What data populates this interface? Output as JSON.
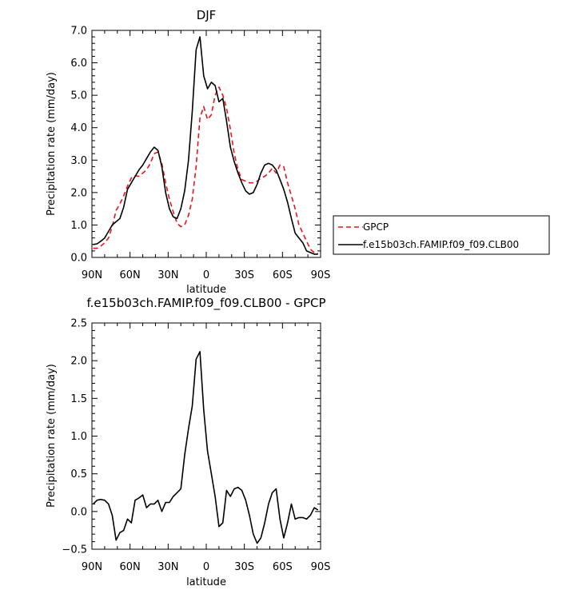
{
  "chart_data": [
    {
      "type": "line",
      "title": "DJF",
      "xlabel": "latitude",
      "ylabel": "Precipitation rate (mm/day)",
      "xlim": [
        90,
        -90
      ],
      "ylim": [
        0,
        7
      ],
      "x_ticks": [
        {
          "v": 90,
          "label": "90N"
        },
        {
          "v": 60,
          "label": "60N"
        },
        {
          "v": 30,
          "label": "30N"
        },
        {
          "v": 0,
          "label": "0"
        },
        {
          "v": -30,
          "label": "30S"
        },
        {
          "v": -60,
          "label": "60S"
        },
        {
          "v": -90,
          "label": "90S"
        }
      ],
      "y_ticks": [
        {
          "v": 0,
          "label": "0.0"
        },
        {
          "v": 1,
          "label": "1.0"
        },
        {
          "v": 2,
          "label": "2.0"
        },
        {
          "v": 3,
          "label": "3.0"
        },
        {
          "v": 4,
          "label": "4.0"
        },
        {
          "v": 5,
          "label": "5.0"
        },
        {
          "v": 6,
          "label": "6.0"
        },
        {
          "v": 7,
          "label": "7.0"
        }
      ],
      "grid": false,
      "legend_placement": "right",
      "series": [
        {
          "name": "GPCP",
          "color": "#e8141c",
          "dash": "dashed",
          "x": [
            89,
            86,
            83,
            80,
            77,
            74,
            71,
            68,
            65,
            62,
            59,
            56,
            53,
            50,
            47,
            44,
            41,
            38,
            35,
            32,
            29,
            26,
            23,
            20,
            17,
            14,
            11,
            8,
            5,
            2,
            -1,
            -4,
            -7,
            -10,
            -13,
            -16,
            -19,
            -22,
            -25,
            -28,
            -31,
            -34,
            -37,
            -40,
            -43,
            -46,
            -49,
            -52,
            -55,
            -58,
            -61,
            -64,
            -67,
            -70,
            -73,
            -76,
            -79,
            -82,
            -85,
            -88
          ],
          "y": [
            0.28,
            0.28,
            0.35,
            0.45,
            0.6,
            0.95,
            1.45,
            1.65,
            1.9,
            2.2,
            2.45,
            2.52,
            2.5,
            2.6,
            2.7,
            2.9,
            3.2,
            3.25,
            2.9,
            2.3,
            1.8,
            1.4,
            1.05,
            0.95,
            1.0,
            1.3,
            1.8,
            2.8,
            4.3,
            4.65,
            4.25,
            4.4,
            5.0,
            5.25,
            5.0,
            4.6,
            3.95,
            3.2,
            2.7,
            2.4,
            2.35,
            2.3,
            2.3,
            2.35,
            2.45,
            2.5,
            2.6,
            2.75,
            2.6,
            2.85,
            2.8,
            2.3,
            1.9,
            1.5,
            1.0,
            0.75,
            0.5,
            0.25,
            0.15,
            0.12
          ]
        },
        {
          "name": "f.e15b03ch.FAMIP.f09_f09.CLB00",
          "color": "#000000",
          "dash": "solid",
          "x": [
            89,
            86,
            83,
            80,
            77,
            74,
            71,
            68,
            65,
            62,
            59,
            56,
            53,
            50,
            47,
            44,
            41,
            38,
            35,
            32,
            29,
            26,
            23,
            20,
            17,
            14,
            11,
            8,
            5,
            2,
            -1,
            -4,
            -7,
            -10,
            -13,
            -16,
            -19,
            -22,
            -25,
            -28,
            -31,
            -34,
            -37,
            -40,
            -43,
            -46,
            -49,
            -52,
            -55,
            -58,
            -61,
            -64,
            -67,
            -70,
            -73,
            -76,
            -79,
            -82,
            -85,
            -88
          ],
          "y": [
            0.4,
            0.42,
            0.5,
            0.6,
            0.8,
            1.0,
            1.1,
            1.2,
            1.55,
            2.1,
            2.3,
            2.5,
            2.7,
            2.85,
            3.05,
            3.25,
            3.4,
            3.3,
            2.8,
            2.0,
            1.5,
            1.25,
            1.2,
            1.5,
            2.05,
            3.0,
            4.5,
            6.4,
            6.8,
            5.6,
            5.2,
            5.4,
            5.3,
            4.8,
            4.9,
            4.2,
            3.4,
            2.95,
            2.6,
            2.3,
            2.05,
            1.95,
            2.0,
            2.25,
            2.6,
            2.85,
            2.9,
            2.85,
            2.7,
            2.4,
            2.1,
            1.7,
            1.2,
            0.75,
            0.6,
            0.45,
            0.2,
            0.15,
            0.1,
            0.1
          ]
        }
      ]
    },
    {
      "type": "line",
      "title": "f.e15b03ch.FAMIP.f09_f09.CLB00 - GPCP",
      "xlabel": "latitude",
      "ylabel": "Precipitation rate (mm/day)",
      "xlim": [
        90,
        -90
      ],
      "ylim": [
        -0.5,
        2.5
      ],
      "x_ticks": [
        {
          "v": 90,
          "label": "90N"
        },
        {
          "v": 60,
          "label": "60N"
        },
        {
          "v": 30,
          "label": "30N"
        },
        {
          "v": 0,
          "label": "0"
        },
        {
          "v": -30,
          "label": "30S"
        },
        {
          "v": -60,
          "label": "60S"
        },
        {
          "v": -90,
          "label": "90S"
        }
      ],
      "y_ticks": [
        {
          "v": -0.5,
          "label": "−0.5"
        },
        {
          "v": 0,
          "label": "0.0"
        },
        {
          "v": 0.5,
          "label": "0.5"
        },
        {
          "v": 1,
          "label": "1.0"
        },
        {
          "v": 1.5,
          "label": "1.5"
        },
        {
          "v": 2,
          "label": "2.0"
        },
        {
          "v": 2.5,
          "label": "2.5"
        }
      ],
      "grid": false,
      "series": [
        {
          "color": "#000000",
          "dash": "solid",
          "x": [
            89,
            86,
            83,
            80,
            77,
            74,
            71,
            68,
            65,
            62,
            59,
            56,
            53,
            50,
            47,
            44,
            41,
            38,
            35,
            32,
            29,
            26,
            23,
            20,
            17,
            14,
            11,
            8,
            5,
            2,
            -1,
            -4,
            -7,
            -10,
            -13,
            -16,
            -19,
            -22,
            -25,
            -28,
            -31,
            -34,
            -37,
            -40,
            -43,
            -46,
            -49,
            -52,
            -55,
            -58,
            -61,
            -64,
            -67,
            -70,
            -73,
            -76,
            -79,
            -82,
            -85,
            -88
          ],
          "y": [
            0.1,
            0.15,
            0.16,
            0.15,
            0.1,
            -0.05,
            -0.38,
            -0.28,
            -0.25,
            -0.1,
            -0.15,
            0.15,
            0.18,
            0.22,
            0.05,
            0.1,
            0.1,
            0.15,
            0.0,
            0.12,
            0.12,
            0.2,
            0.25,
            0.3,
            0.75,
            1.1,
            1.4,
            2.02,
            2.12,
            1.35,
            0.8,
            0.5,
            0.2,
            -0.2,
            -0.15,
            0.28,
            0.2,
            0.3,
            0.32,
            0.28,
            0.15,
            -0.05,
            -0.3,
            -0.42,
            -0.35,
            -0.15,
            0.1,
            0.25,
            0.3,
            -0.1,
            -0.35,
            -0.15,
            0.1,
            -0.1,
            -0.08,
            -0.08,
            -0.1,
            -0.05,
            0.05,
            0.02
          ]
        }
      ]
    }
  ]
}
